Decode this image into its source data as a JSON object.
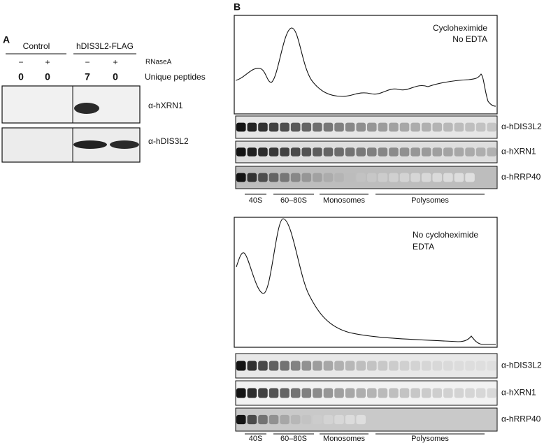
{
  "panel_a": {
    "label": "A",
    "groups": [
      "Control",
      "hDIS3L2-FLAG"
    ],
    "treatment_label": "RNaseA",
    "treatments": [
      "−",
      "+",
      "−",
      "+"
    ],
    "peptides_label": "Unique peptides",
    "peptides": [
      "0",
      "0",
      "7",
      "0"
    ],
    "blots": [
      "α-hXRN1",
      "α-hDIS3L2"
    ]
  },
  "panel_b": {
    "label": "B",
    "profiles": [
      {
        "conditions": [
          "Cycloheximide",
          "No EDTA"
        ],
        "blots": [
          "α-hDIS3L2",
          "α-hXRN1",
          "α-hRRP40"
        ],
        "fractions": [
          "40S",
          "60–80S",
          "Monosomes",
          "Polysomes"
        ]
      },
      {
        "conditions": [
          "No cycloheximide",
          "EDTA"
        ],
        "blots": [
          "α-hDIS3L2",
          "α-hXRN1",
          "α-hRRP40"
        ],
        "fractions": [
          "40S",
          "60–80S",
          "Monosomes",
          "Polysomes"
        ]
      }
    ]
  }
}
